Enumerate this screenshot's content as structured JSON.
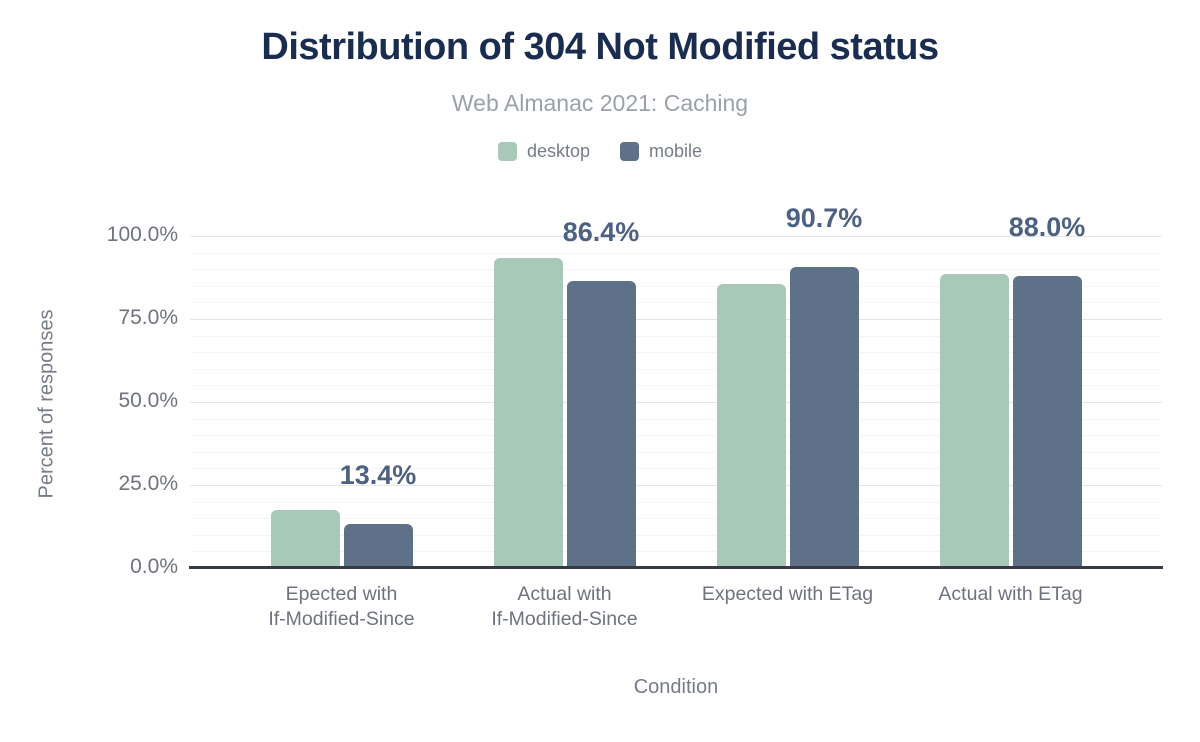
{
  "header": {
    "title": "Distribution of 304 Not Modified status",
    "subtitle": "Web Almanac 2021: Caching"
  },
  "chart_data": {
    "type": "bar",
    "title": "Distribution of 304 Not Modified status",
    "subtitle": "Web Almanac 2021: Caching",
    "categories": [
      "Epected with\nIf-Modified-Since",
      "Actual with\nIf-Modified-Since",
      "Expected with ETag",
      "Actual with ETag"
    ],
    "series": [
      {
        "name": "desktop",
        "color": "#a8c9b8",
        "values": [
          17.5,
          93.5,
          85.4,
          88.5
        ]
      },
      {
        "name": "mobile",
        "color": "#5f7189",
        "values": [
          13.4,
          86.4,
          90.7,
          88.0
        ]
      }
    ],
    "annotations": {
      "series": "mobile",
      "labels": [
        "13.4%",
        "86.4%",
        "90.7%",
        "88.0%"
      ]
    },
    "xlabel": "Condition",
    "ylabel": "Percent of responses",
    "ylim": [
      0,
      100
    ],
    "yticks": [
      {
        "value": 0,
        "label": "0.0%"
      },
      {
        "value": 25,
        "label": "25.0%"
      },
      {
        "value": 50,
        "label": "50.0%"
      },
      {
        "value": 75,
        "label": "75.0%"
      },
      {
        "value": 100,
        "label": "100.0%"
      }
    ],
    "minor_grid_step": 5,
    "grid": true,
    "legend_position": "top"
  },
  "colors": {
    "background": "#ffffff",
    "title": "#1b2d4f",
    "subtitle": "#9aa1a8",
    "legend_text": "#767c86",
    "axis_text": "#6e737c",
    "annotation": "#4d6182",
    "axis_line": "#343b46",
    "grid_major": "#e4e4e9",
    "grid_minor": "#f5f5f7",
    "desktop": "#a8c9b8",
    "mobile": "#5f7189"
  }
}
